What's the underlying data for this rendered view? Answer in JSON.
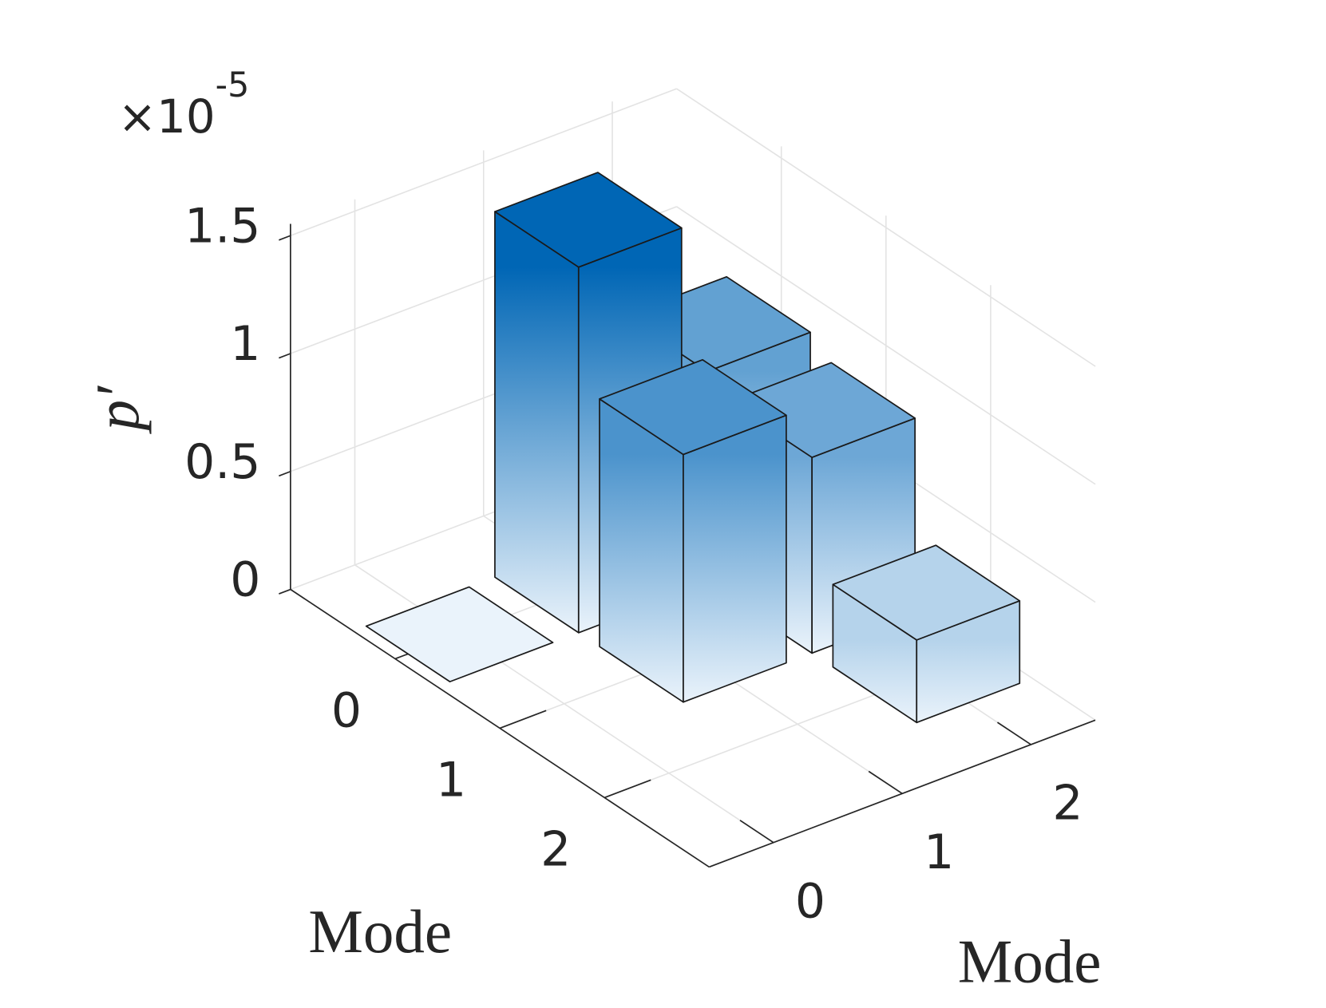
{
  "chart_data": {
    "type": "bar3",
    "xlabel": "Mode",
    "ylabel": "Mode",
    "zlabel": "p′",
    "multiplier": "×10",
    "multiplier_exponent": "-5",
    "xticks": [
      0,
      1,
      2
    ],
    "yticks": [
      0,
      1,
      2
    ],
    "zticks": [
      0,
      0.5,
      1,
      1.5
    ],
    "xlim": [
      -1,
      3
    ],
    "ylim": [
      -0.5,
      2.5
    ],
    "zlim": [
      0,
      1.55
    ],
    "values": [
      [
        0,
        1.55,
        0.9
      ],
      [
        null,
        1.05,
        0.83
      ],
      [
        null,
        null,
        0.35
      ]
    ],
    "colormap": [
      "#eaf3fb",
      "#0066b5"
    ],
    "edge_color": "#1a1a1a",
    "grid": true
  }
}
